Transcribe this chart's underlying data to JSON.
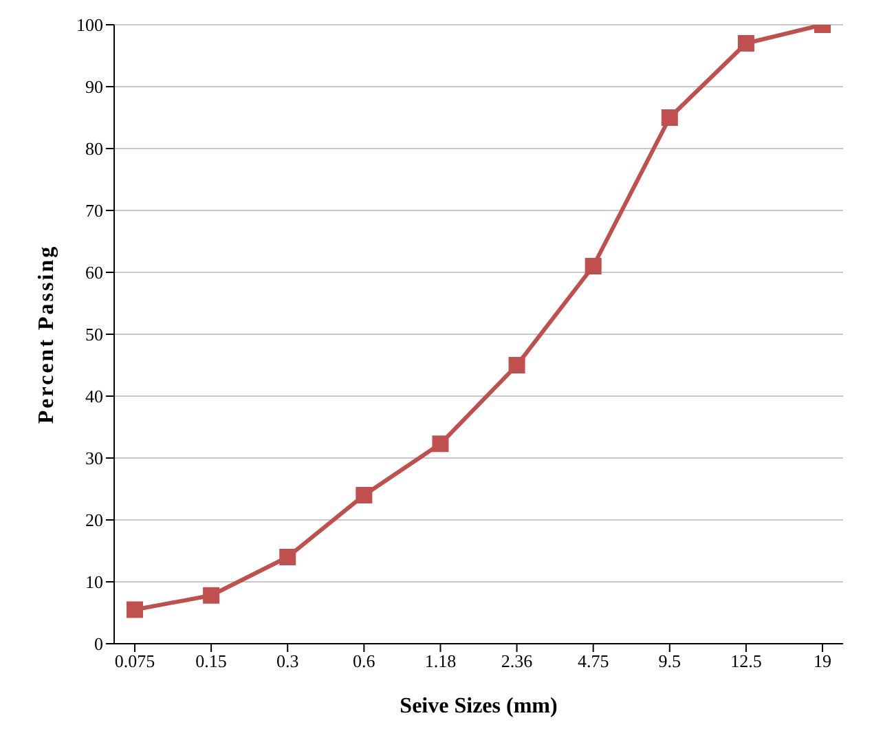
{
  "chart_data": {
    "type": "line",
    "xlabel": "Seive Sizes (mm)",
    "ylabel": "Percent Passing",
    "categories": [
      "0.075",
      "0.15",
      "0.3",
      "0.6",
      "1.18",
      "2.36",
      "4.75",
      "9.5",
      "12.5",
      "19"
    ],
    "series": [
      {
        "color": "#c0504d",
        "values": [
          5.5,
          7.8,
          14,
          24,
          32.3,
          45,
          61,
          85,
          97,
          100
        ]
      }
    ],
    "ylim": [
      0,
      100
    ],
    "yticks": [
      0,
      10,
      20,
      30,
      40,
      50,
      60,
      70,
      80,
      90,
      100
    ],
    "grid": "y",
    "legend": false,
    "marker": "square",
    "line_style": "solid"
  }
}
